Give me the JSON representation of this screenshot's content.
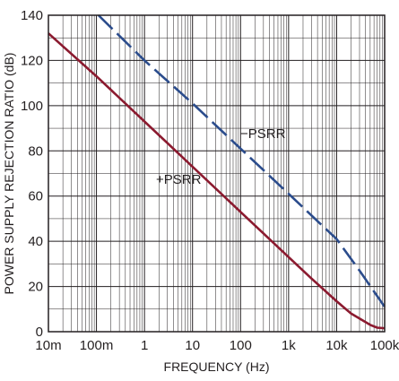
{
  "chart_data": {
    "type": "line",
    "xscale": "log",
    "xlim": [
      0.01,
      100000
    ],
    "ylim": [
      0,
      140
    ],
    "grid": true,
    "xlabel": "FREQUENCY (Hz)",
    "ylabel": "POWER SUPPLY REJECTION RATIO (dB)",
    "x_ticks": [
      {
        "value": 0.01,
        "label": "10m"
      },
      {
        "value": 0.1,
        "label": "100m"
      },
      {
        "value": 1,
        "label": "1"
      },
      {
        "value": 10,
        "label": "10"
      },
      {
        "value": 100,
        "label": "100"
      },
      {
        "value": 1000,
        "label": "1k"
      },
      {
        "value": 10000,
        "label": "10k"
      },
      {
        "value": 100000,
        "label": "100k"
      }
    ],
    "y_ticks": [
      0,
      20,
      40,
      60,
      80,
      100,
      120,
      140
    ],
    "series": [
      {
        "name": "+PSRR",
        "color": "#8b1a2f",
        "style": "solid",
        "x": [
          0.01,
          0.1,
          1,
          10,
          100,
          1000,
          3000,
          10000,
          20000,
          50000,
          70000,
          100000
        ],
        "y": [
          132,
          113,
          93,
          73,
          53,
          33,
          23.5,
          13.5,
          8,
          3,
          1.8,
          1.5
        ]
      },
      {
        "name": "−PSRR",
        "color": "#2b4c8c",
        "style": "dashed",
        "x": [
          0.11,
          1,
          10,
          100,
          1000,
          5000,
          10000,
          30000,
          100000
        ],
        "y": [
          140,
          120,
          101,
          81,
          61,
          47,
          41,
          27,
          11
        ]
      }
    ]
  }
}
